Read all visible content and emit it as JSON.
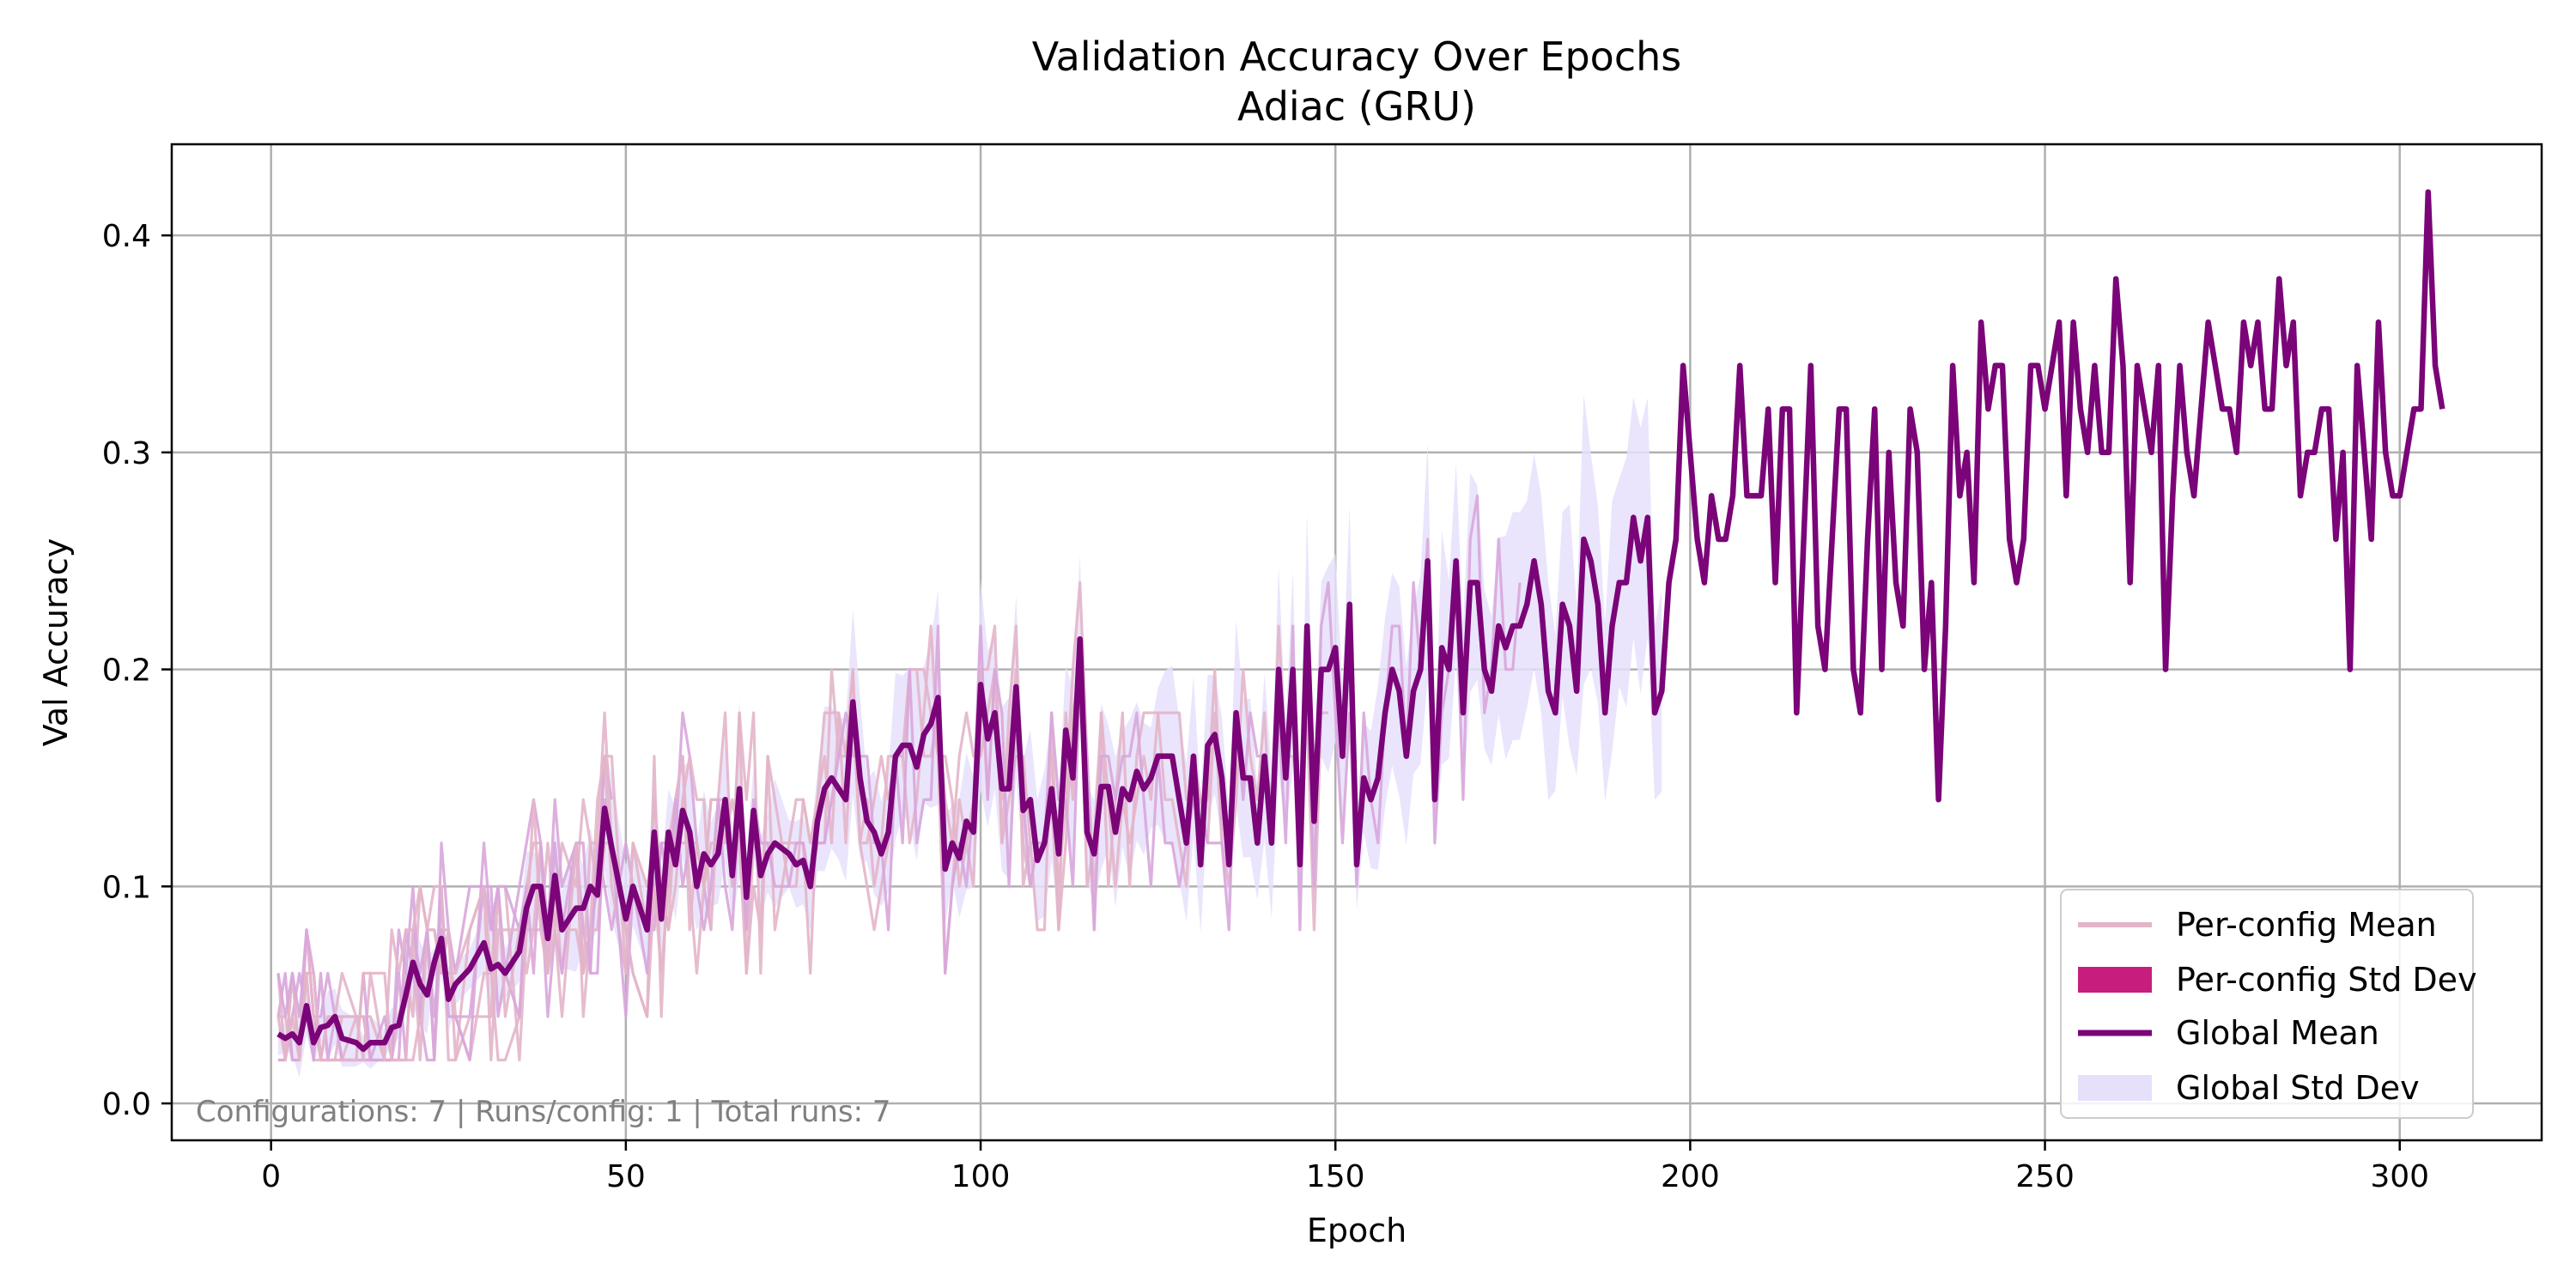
{
  "chart_data": {
    "type": "line",
    "title": "Validation Accuracy Over Epochs",
    "subtitle": "Adiac (GRU)",
    "xlabel": "Epoch",
    "ylabel": "Val Accuracy",
    "xlim": [
      -14,
      320
    ],
    "ylim": [
      -0.017,
      0.442
    ],
    "xticks": [
      0,
      50,
      100,
      150,
      200,
      250,
      300
    ],
    "yticks": [
      0.0,
      0.1,
      0.2,
      0.3,
      0.4
    ],
    "xtick_labels": [
      "0",
      "50",
      "100",
      "150",
      "200",
      "250",
      "300"
    ],
    "ytick_labels": [
      "0.0",
      "0.1",
      "0.2",
      "0.3",
      "0.4"
    ],
    "grid": true,
    "legend_position": "lower-right",
    "legend": [
      {
        "label": "Per-config Mean",
        "kind": "line",
        "color": "#e3b5c9"
      },
      {
        "label": "Per-config Std Dev",
        "kind": "patch",
        "color": "#c71e7d"
      },
      {
        "label": "Global Mean",
        "kind": "line",
        "color": "#7a0478"
      },
      {
        "label": "Global Std Dev",
        "kind": "patch",
        "color": "#e6e0fb"
      }
    ],
    "annotation": "Configurations: 7 | Runs/config: 1 | Total runs: 7",
    "colors": {
      "global_mean": "#7a0478",
      "global_std": "#e6e0fb",
      "per_config_pink": "#e3b5c9",
      "per_config_purple": "#d8a6db",
      "per_config_std": "#c71e7d"
    },
    "global_mean_keypoints": [
      [
        1,
        0.032
      ],
      [
        2,
        0.03
      ],
      [
        3,
        0.032
      ],
      [
        4,
        0.028
      ],
      [
        5,
        0.045
      ],
      [
        6,
        0.028
      ],
      [
        7,
        0.035
      ],
      [
        8,
        0.036
      ],
      [
        9,
        0.04
      ],
      [
        10,
        0.03
      ],
      [
        12,
        0.028
      ],
      [
        13,
        0.025
      ],
      [
        14,
        0.028
      ],
      [
        16,
        0.028
      ],
      [
        17,
        0.035
      ],
      [
        18,
        0.036
      ],
      [
        19,
        0.05
      ],
      [
        20,
        0.065
      ],
      [
        21,
        0.055
      ],
      [
        22,
        0.05
      ],
      [
        23,
        0.065
      ],
      [
        24,
        0.076
      ],
      [
        25,
        0.048
      ],
      [
        26,
        0.055
      ],
      [
        28,
        0.062
      ],
      [
        30,
        0.074
      ],
      [
        31,
        0.062
      ],
      [
        32,
        0.064
      ],
      [
        33,
        0.06
      ],
      [
        35,
        0.07
      ],
      [
        36,
        0.09
      ],
      [
        37,
        0.1
      ],
      [
        38,
        0.1
      ],
      [
        39,
        0.076
      ],
      [
        40,
        0.105
      ],
      [
        41,
        0.08
      ],
      [
        43,
        0.09
      ],
      [
        44,
        0.09
      ],
      [
        45,
        0.1
      ],
      [
        46,
        0.096
      ],
      [
        47,
        0.136
      ],
      [
        48,
        0.118
      ],
      [
        50,
        0.085
      ],
      [
        51,
        0.1
      ],
      [
        53,
        0.08
      ],
      [
        54,
        0.125
      ],
      [
        55,
        0.085
      ],
      [
        56,
        0.125
      ],
      [
        57,
        0.11
      ],
      [
        58,
        0.135
      ],
      [
        59,
        0.125
      ],
      [
        60,
        0.1
      ],
      [
        61,
        0.115
      ],
      [
        62,
        0.11
      ],
      [
        63,
        0.115
      ],
      [
        64,
        0.14
      ],
      [
        65,
        0.105
      ],
      [
        66,
        0.145
      ],
      [
        67,
        0.095
      ],
      [
        68,
        0.135
      ],
      [
        69,
        0.105
      ],
      [
        70,
        0.115
      ],
      [
        71,
        0.12
      ],
      [
        73,
        0.115
      ],
      [
        74,
        0.11
      ],
      [
        75,
        0.112
      ],
      [
        76,
        0.1
      ],
      [
        77,
        0.13
      ],
      [
        78,
        0.145
      ],
      [
        79,
        0.15
      ],
      [
        80,
        0.145
      ],
      [
        81,
        0.14
      ],
      [
        82,
        0.185
      ],
      [
        83,
        0.15
      ],
      [
        84,
        0.13
      ],
      [
        85,
        0.125
      ],
      [
        86,
        0.115
      ],
      [
        87,
        0.125
      ],
      [
        88,
        0.16
      ],
      [
        89,
        0.165
      ],
      [
        90,
        0.165
      ],
      [
        91,
        0.155
      ],
      [
        92,
        0.17
      ],
      [
        93,
        0.175
      ],
      [
        94,
        0.187
      ],
      [
        95,
        0.108
      ],
      [
        96,
        0.12
      ],
      [
        97,
        0.113
      ],
      [
        98,
        0.13
      ],
      [
        99,
        0.125
      ],
      [
        100,
        0.193
      ],
      [
        101,
        0.168
      ],
      [
        102,
        0.18
      ],
      [
        103,
        0.145
      ],
      [
        104,
        0.145
      ],
      [
        105,
        0.192
      ],
      [
        106,
        0.135
      ],
      [
        107,
        0.14
      ],
      [
        108,
        0.112
      ],
      [
        109,
        0.12
      ],
      [
        110,
        0.145
      ],
      [
        111,
        0.115
      ],
      [
        112,
        0.172
      ],
      [
        113,
        0.15
      ],
      [
        114,
        0.214
      ],
      [
        115,
        0.125
      ],
      [
        116,
        0.115
      ],
      [
        117,
        0.146
      ],
      [
        118,
        0.146
      ],
      [
        119,
        0.125
      ],
      [
        120,
        0.145
      ],
      [
        121,
        0.14
      ],
      [
        122,
        0.153
      ],
      [
        123,
        0.145
      ],
      [
        124,
        0.15
      ],
      [
        125,
        0.16
      ],
      [
        126,
        0.16
      ],
      [
        127,
        0.16
      ],
      [
        128,
        0.14
      ],
      [
        129,
        0.12
      ],
      [
        130,
        0.16
      ],
      [
        131,
        0.11
      ],
      [
        132,
        0.165
      ],
      [
        133,
        0.17
      ],
      [
        134,
        0.15
      ],
      [
        135,
        0.11
      ],
      [
        136,
        0.18
      ],
      [
        137,
        0.15
      ],
      [
        138,
        0.15
      ],
      [
        139,
        0.12
      ],
      [
        140,
        0.16
      ],
      [
        141,
        0.12
      ],
      [
        142,
        0.2
      ],
      [
        143,
        0.15
      ],
      [
        144,
        0.2
      ],
      [
        145,
        0.11
      ],
      [
        146,
        0.22
      ],
      [
        147,
        0.13
      ],
      [
        148,
        0.2
      ],
      [
        149,
        0.2
      ],
      [
        150,
        0.21
      ],
      [
        151,
        0.16
      ],
      [
        152,
        0.23
      ],
      [
        153,
        0.11
      ],
      [
        154,
        0.15
      ],
      [
        155,
        0.14
      ],
      [
        156,
        0.15
      ],
      [
        157,
        0.18
      ],
      [
        158,
        0.2
      ],
      [
        159,
        0.19
      ],
      [
        160,
        0.16
      ],
      [
        161,
        0.19
      ],
      [
        162,
        0.2
      ],
      [
        163,
        0.25
      ],
      [
        164,
        0.14
      ],
      [
        165,
        0.21
      ],
      [
        166,
        0.2
      ],
      [
        167,
        0.25
      ],
      [
        168,
        0.18
      ],
      [
        169,
        0.24
      ],
      [
        170,
        0.24
      ],
      [
        171,
        0.2
      ],
      [
        172,
        0.19
      ],
      [
        173,
        0.22
      ],
      [
        174,
        0.21
      ],
      [
        175,
        0.22
      ],
      [
        176,
        0.22
      ],
      [
        177,
        0.23
      ],
      [
        178,
        0.25
      ],
      [
        179,
        0.23
      ],
      [
        180,
        0.19
      ],
      [
        181,
        0.18
      ],
      [
        182,
        0.23
      ],
      [
        183,
        0.22
      ],
      [
        184,
        0.19
      ],
      [
        185,
        0.26
      ],
      [
        186,
        0.25
      ],
      [
        187,
        0.23
      ],
      [
        188,
        0.18
      ],
      [
        189,
        0.22
      ],
      [
        190,
        0.24
      ],
      [
        191,
        0.24
      ],
      [
        192,
        0.27
      ],
      [
        193,
        0.25
      ],
      [
        194,
        0.27
      ],
      [
        195,
        0.18
      ],
      [
        196,
        0.19
      ],
      [
        197,
        0.24
      ],
      [
        198,
        0.26
      ],
      [
        199,
        0.34
      ],
      [
        200,
        0.3
      ],
      [
        201,
        0.26
      ],
      [
        202,
        0.24
      ],
      [
        203,
        0.28
      ],
      [
        204,
        0.26
      ],
      [
        205,
        0.26
      ],
      [
        206,
        0.28
      ],
      [
        207,
        0.34
      ],
      [
        208,
        0.28
      ],
      [
        209,
        0.28
      ],
      [
        210,
        0.28
      ],
      [
        211,
        0.32
      ],
      [
        212,
        0.24
      ],
      [
        213,
        0.32
      ],
      [
        214,
        0.32
      ],
      [
        215,
        0.18
      ],
      [
        216,
        0.26
      ],
      [
        217,
        0.34
      ],
      [
        218,
        0.22
      ],
      [
        219,
        0.2
      ],
      [
        220,
        0.26
      ],
      [
        221,
        0.32
      ],
      [
        222,
        0.32
      ],
      [
        223,
        0.2
      ],
      [
        224,
        0.18
      ],
      [
        225,
        0.26
      ],
      [
        226,
        0.32
      ],
      [
        227,
        0.2
      ],
      [
        228,
        0.3
      ],
      [
        229,
        0.24
      ],
      [
        230,
        0.22
      ],
      [
        231,
        0.32
      ],
      [
        232,
        0.3
      ],
      [
        233,
        0.2
      ],
      [
        234,
        0.24
      ],
      [
        235,
        0.14
      ],
      [
        236,
        0.22
      ],
      [
        237,
        0.34
      ],
      [
        238,
        0.28
      ],
      [
        239,
        0.3
      ],
      [
        240,
        0.24
      ],
      [
        241,
        0.36
      ],
      [
        242,
        0.32
      ],
      [
        243,
        0.34
      ],
      [
        244,
        0.34
      ],
      [
        245,
        0.26
      ],
      [
        246,
        0.24
      ],
      [
        247,
        0.26
      ],
      [
        248,
        0.34
      ],
      [
        249,
        0.34
      ],
      [
        250,
        0.32
      ],
      [
        251,
        0.34
      ],
      [
        252,
        0.36
      ],
      [
        253,
        0.28
      ],
      [
        254,
        0.36
      ],
      [
        255,
        0.32
      ],
      [
        256,
        0.3
      ],
      [
        257,
        0.34
      ],
      [
        258,
        0.3
      ],
      [
        259,
        0.3
      ],
      [
        260,
        0.38
      ],
      [
        261,
        0.34
      ],
      [
        262,
        0.24
      ],
      [
        263,
        0.34
      ],
      [
        264,
        0.32
      ],
      [
        265,
        0.3
      ],
      [
        266,
        0.34
      ],
      [
        267,
        0.2
      ],
      [
        268,
        0.28
      ],
      [
        269,
        0.34
      ],
      [
        270,
        0.3
      ],
      [
        271,
        0.28
      ],
      [
        272,
        0.32
      ],
      [
        273,
        0.36
      ],
      [
        274,
        0.34
      ],
      [
        275,
        0.32
      ],
      [
        276,
        0.32
      ],
      [
        277,
        0.3
      ],
      [
        278,
        0.36
      ],
      [
        279,
        0.34
      ],
      [
        280,
        0.36
      ],
      [
        281,
        0.32
      ],
      [
        282,
        0.32
      ],
      [
        283,
        0.38
      ],
      [
        284,
        0.34
      ],
      [
        285,
        0.36
      ],
      [
        286,
        0.28
      ],
      [
        287,
        0.3
      ],
      [
        288,
        0.3
      ],
      [
        289,
        0.32
      ],
      [
        290,
        0.32
      ],
      [
        291,
        0.26
      ],
      [
        292,
        0.3
      ],
      [
        293,
        0.2
      ],
      [
        294,
        0.34
      ],
      [
        295,
        0.3
      ],
      [
        296,
        0.26
      ],
      [
        297,
        0.36
      ],
      [
        298,
        0.3
      ],
      [
        299,
        0.28
      ],
      [
        300,
        0.28
      ],
      [
        301,
        0.3
      ],
      [
        302,
        0.32
      ],
      [
        303,
        0.32
      ],
      [
        304,
        0.42
      ],
      [
        305,
        0.34
      ],
      [
        306,
        0.32
      ]
    ],
    "global_std_range_epochs": [
      1,
      196
    ],
    "per_config_series_count": 7
  }
}
